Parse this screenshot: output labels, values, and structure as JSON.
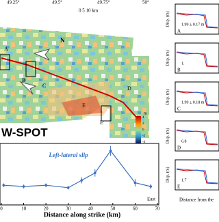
{
  "map": {
    "top_ticks": [
      "49.25°",
      "49.5°",
      "49.75°",
      "50°"
    ],
    "scale_label": "0   5   10 km",
    "north": "N",
    "sensor": "W-SPOT",
    "colorbar_unit": "m",
    "colorbar_ticks": [
      "4",
      "2",
      "0",
      "-2",
      "-4"
    ],
    "markers": [
      "A",
      "B",
      "C",
      "D",
      "E",
      "E'"
    ]
  },
  "profiles": {
    "ylabel": "Disp. (m)",
    "xlabel": "Distance from the",
    "panels": [
      {
        "label": "A",
        "value": "1.99 ± 0.17 m"
      },
      {
        "label": "B",
        "value": "1."
      },
      {
        "label": "C",
        "value": "1.99 ± 0.18 m"
      },
      {
        "label": "D",
        "value": "6.8"
      },
      {
        "label": "E",
        "value": "1.7"
      }
    ]
  },
  "chart_data": {
    "type": "line",
    "title": "Left-lateral slip",
    "xlabel": "Distance along strike (km)",
    "annotation": "East",
    "color": "#3a6fc0",
    "x": [
      1,
      10,
      20,
      30,
      36,
      42,
      49,
      60,
      67
    ],
    "values": [
      1.6,
      1.5,
      1.6,
      1.4,
      2.0,
      2.6,
      4.4,
      1.8,
      1.5
    ],
    "errors": [
      0.15,
      0.15,
      0.15,
      0.15,
      0.25,
      0.3,
      0.4,
      0.3,
      0.2
    ],
    "xlim": [
      0,
      70
    ],
    "ylim": [
      0,
      5
    ],
    "xticks": [
      0,
      10,
      20,
      30,
      40,
      50,
      60,
      70
    ]
  }
}
